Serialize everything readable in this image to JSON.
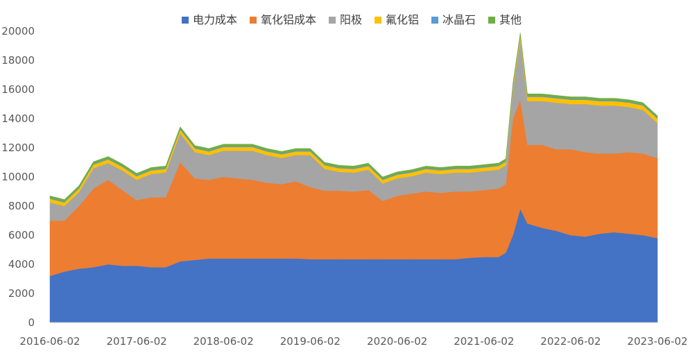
{
  "chart_data": {
    "type": "area",
    "stacked": true,
    "title": "",
    "xlabel": "",
    "ylabel": "",
    "ylim": [
      0,
      20000
    ],
    "y_ticks": [
      0,
      2000,
      4000,
      6000,
      8000,
      10000,
      12000,
      14000,
      16000,
      18000,
      20000
    ],
    "x_ticks": [
      "2016-06-02",
      "2017-06-02",
      "2018-06-02",
      "2019-06-02",
      "2020-06-02",
      "2021-06-02",
      "2022-06-02",
      "2023-06-02"
    ],
    "legend_position": "top",
    "grid": false,
    "x": [
      "2016-06-02",
      "2016-08-02",
      "2016-10-02",
      "2016-12-02",
      "2017-02-02",
      "2017-04-02",
      "2017-06-02",
      "2017-08-02",
      "2017-10-02",
      "2017-12-02",
      "2018-02-02",
      "2018-04-02",
      "2018-06-02",
      "2018-08-02",
      "2018-10-02",
      "2018-12-02",
      "2019-02-02",
      "2019-04-02",
      "2019-06-02",
      "2019-08-02",
      "2019-10-02",
      "2019-12-02",
      "2020-02-02",
      "2020-04-02",
      "2020-06-02",
      "2020-08-02",
      "2020-10-02",
      "2020-12-02",
      "2021-02-02",
      "2021-04-02",
      "2021-06-02",
      "2021-08-02",
      "2021-09-02",
      "2021-10-02",
      "2021-11-02",
      "2021-12-02",
      "2022-02-02",
      "2022-04-02",
      "2022-06-02",
      "2022-08-02",
      "2022-10-02",
      "2022-12-02",
      "2023-02-02",
      "2023-04-02",
      "2023-06-02"
    ],
    "series": [
      {
        "name": "电力成本",
        "color": "#4472C4",
        "values": [
          3200,
          3500,
          3700,
          3800,
          4000,
          3900,
          3900,
          3800,
          3800,
          4200,
          4300,
          4400,
          4400,
          4400,
          4400,
          4400,
          4400,
          4400,
          4350,
          4350,
          4350,
          4350,
          4350,
          4350,
          4350,
          4350,
          4350,
          4350,
          4350,
          4450,
          4500,
          4500,
          4800,
          6000,
          7800,
          6800,
          6500,
          6300,
          6000,
          5900,
          6100,
          6200,
          6100,
          6000,
          5800
        ]
      },
      {
        "name": "氧化铝成本",
        "color": "#ED7D31",
        "values": [
          3800,
          3500,
          4300,
          5400,
          5800,
          5200,
          4500,
          4800,
          4800,
          6800,
          5600,
          5400,
          5600,
          5500,
          5400,
          5200,
          5100,
          5300,
          4950,
          4700,
          4700,
          4650,
          4750,
          4000,
          4350,
          4500,
          4650,
          4550,
          4650,
          4550,
          4600,
          4700,
          4700,
          8000,
          7500,
          5400,
          5700,
          5600,
          5900,
          5800,
          5500,
          5400,
          5600,
          5600,
          5500
        ]
      },
      {
        "name": "阳极",
        "color": "#A5A5A5",
        "values": [
          1250,
          1000,
          950,
          1400,
          1150,
          1350,
          1400,
          1600,
          1700,
          2000,
          1800,
          1700,
          1800,
          1900,
          2000,
          1900,
          1800,
          1800,
          2200,
          1500,
          1300,
          1300,
          1400,
          1200,
          1200,
          1200,
          1300,
          1300,
          1300,
          1300,
          1300,
          1300,
          1300,
          2000,
          4100,
          3000,
          3000,
          3200,
          3100,
          3300,
          3300,
          3300,
          3100,
          3000,
          2400
        ]
      },
      {
        "name": "氟化铝",
        "color": "#FFC000",
        "values": [
          250,
          250,
          250,
          250,
          250,
          250,
          250,
          250,
          250,
          250,
          250,
          250,
          250,
          250,
          250,
          250,
          250,
          250,
          250,
          250,
          250,
          250,
          250,
          250,
          250,
          250,
          250,
          250,
          250,
          250,
          250,
          250,
          250,
          250,
          300,
          300,
          300,
          300,
          300,
          300,
          300,
          300,
          300,
          300,
          300
        ]
      },
      {
        "name": "冰晶石",
        "color": "#5B9BD5",
        "values": [
          50,
          50,
          50,
          50,
          50,
          50,
          50,
          50,
          50,
          50,
          50,
          50,
          50,
          50,
          50,
          50,
          50,
          50,
          50,
          50,
          50,
          50,
          50,
          50,
          50,
          50,
          50,
          50,
          50,
          50,
          50,
          50,
          50,
          50,
          50,
          50,
          50,
          50,
          50,
          50,
          50,
          50,
          50,
          50,
          50
        ]
      },
      {
        "name": "其他",
        "color": "#70AD47",
        "values": [
          150,
          150,
          150,
          150,
          150,
          150,
          150,
          150,
          150,
          150,
          150,
          150,
          150,
          150,
          150,
          150,
          150,
          150,
          150,
          150,
          150,
          150,
          150,
          150,
          150,
          150,
          150,
          150,
          150,
          150,
          150,
          150,
          150,
          150,
          150,
          150,
          150,
          150,
          150,
          150,
          150,
          150,
          150,
          150,
          150
        ]
      }
    ]
  }
}
